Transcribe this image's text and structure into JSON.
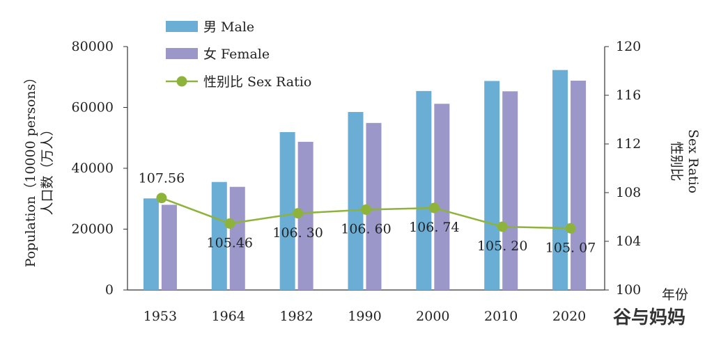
{
  "chart_data": {
    "type": "bar",
    "categories": [
      "1953",
      "1964",
      "1982",
      "1990",
      "2000",
      "2010",
      "2020"
    ],
    "series": [
      {
        "name": "男 Male",
        "type": "bar",
        "axis": "left",
        "color": "#6aaed6",
        "values": [
          30100,
          35500,
          51900,
          58500,
          65400,
          68700,
          72300
        ]
      },
      {
        "name": "女 Female",
        "type": "bar",
        "axis": "left",
        "color": "#9b97c9",
        "values": [
          28000,
          33900,
          48700,
          54900,
          61200,
          65300,
          68800
        ]
      },
      {
        "name": "性别比 Sex Ratio",
        "type": "line",
        "axis": "right",
        "color": "#8db33a",
        "values": [
          107.56,
          105.46,
          106.3,
          106.6,
          106.74,
          105.2,
          105.07
        ],
        "labels": [
          "107.56",
          "105.46",
          "106. 30",
          "106. 60",
          "106. 74",
          "105. 20",
          "105. 07"
        ]
      }
    ],
    "ylabel_left_line1": "Population（10000 persons）",
    "ylabel_left_line2": "人口数（万人）",
    "ylabel_right_line1": "Sex Ratio",
    "ylabel_right_line2": "性别比",
    "xlabel": "年份",
    "ylim_left": [
      0,
      80000
    ],
    "yticks_left": [
      "0",
      "20000",
      "40000",
      "60000",
      "80000"
    ],
    "ylim_right": [
      100,
      120
    ],
    "yticks_right": [
      "100",
      "104",
      "108",
      "112",
      "116",
      "120"
    ],
    "grid": false,
    "legend": "top-left"
  },
  "watermark": "谷与妈妈"
}
